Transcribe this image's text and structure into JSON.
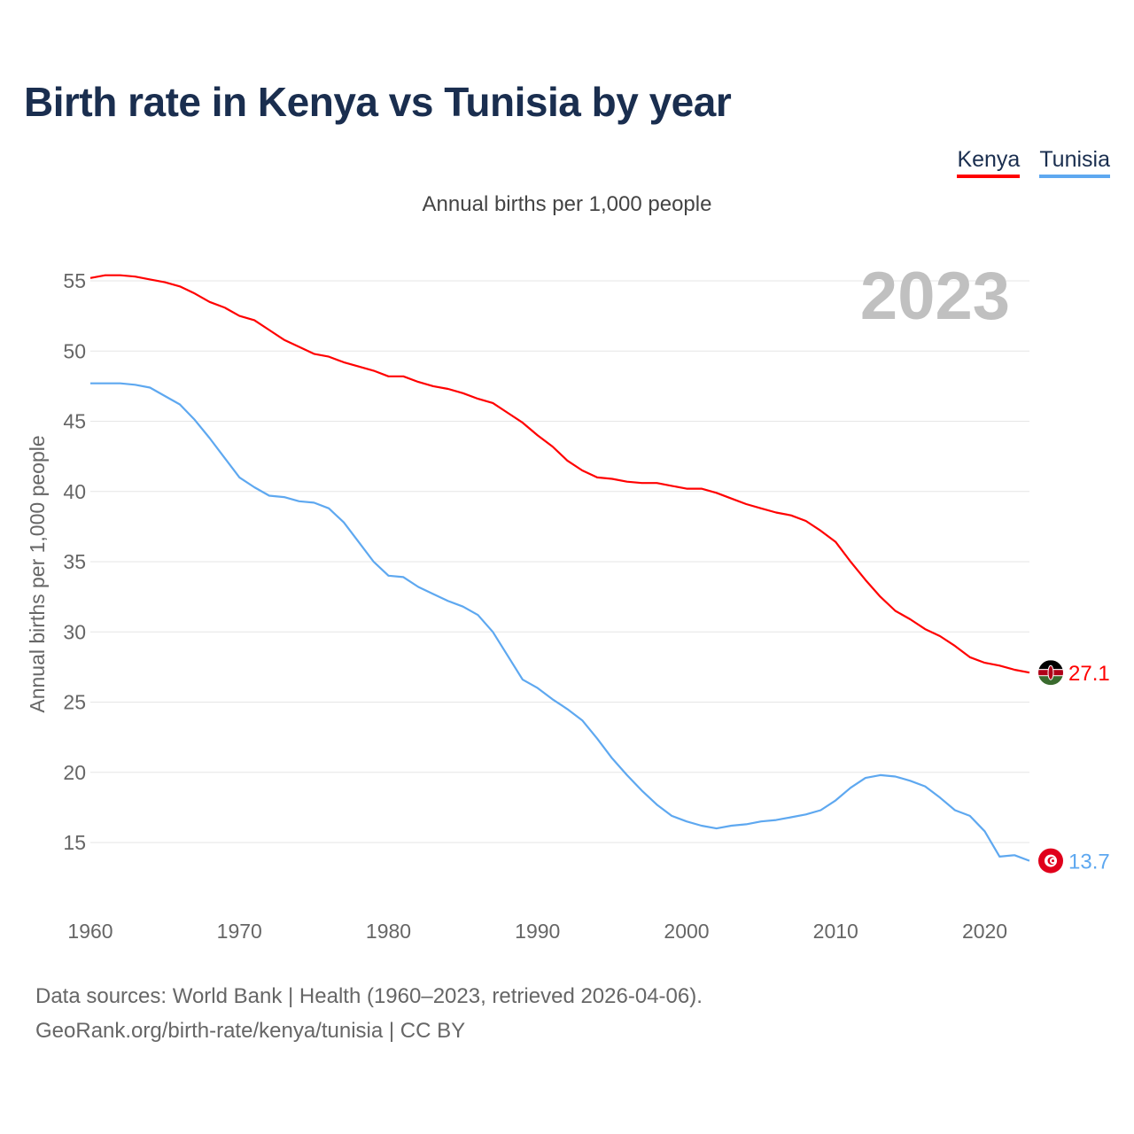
{
  "title": "Birth rate in Kenya vs Tunisia by year",
  "subtitle": "Annual births per 1,000 people",
  "footer": {
    "line1": "Data sources: World Bank | Health (1960–2023, retrieved 2026-04-06).",
    "line2": "GeoRank.org/birth-rate/kenya/tunisia | CC BY"
  },
  "chart_data": {
    "type": "line",
    "title": "Birth rate in Kenya vs Tunisia by year",
    "xlabel": "",
    "ylabel": "Annual births per 1,000 people",
    "year_label": "2023",
    "xlim": [
      1960,
      2023
    ],
    "ylim": [
      10,
      57
    ],
    "xticks": [
      1960,
      1970,
      1980,
      1990,
      2000,
      2010,
      2020
    ],
    "yticks": [
      15,
      20,
      25,
      30,
      35,
      40,
      45,
      50,
      55
    ],
    "grid": true,
    "legend_position": "top-right",
    "x": [
      1960,
      1961,
      1962,
      1963,
      1964,
      1965,
      1966,
      1967,
      1968,
      1969,
      1970,
      1971,
      1972,
      1973,
      1974,
      1975,
      1976,
      1977,
      1978,
      1979,
      1980,
      1981,
      1982,
      1983,
      1984,
      1985,
      1986,
      1987,
      1988,
      1989,
      1990,
      1991,
      1992,
      1993,
      1994,
      1995,
      1996,
      1997,
      1998,
      1999,
      2000,
      2001,
      2002,
      2003,
      2004,
      2005,
      2006,
      2007,
      2008,
      2009,
      2010,
      2011,
      2012,
      2013,
      2014,
      2015,
      2016,
      2017,
      2018,
      2019,
      2020,
      2021,
      2022,
      2023
    ],
    "series": [
      {
        "name": "Kenya",
        "color": "#ff0000",
        "end_label": "27.1",
        "flag": "kenya-flag",
        "values": [
          55.2,
          55.4,
          55.4,
          55.3,
          55.1,
          54.9,
          54.6,
          54.1,
          53.5,
          53.1,
          52.5,
          52.2,
          51.5,
          50.8,
          50.3,
          49.8,
          49.6,
          49.2,
          48.9,
          48.6,
          48.2,
          48.2,
          47.8,
          47.5,
          47.3,
          47.0,
          46.6,
          46.3,
          45.6,
          44.9,
          44.0,
          43.2,
          42.2,
          41.5,
          41.0,
          40.9,
          40.7,
          40.6,
          40.6,
          40.4,
          40.2,
          40.2,
          39.9,
          39.5,
          39.1,
          38.8,
          38.5,
          38.3,
          37.9,
          37.2,
          36.4,
          35.0,
          33.7,
          32.5,
          31.5,
          30.9,
          30.2,
          29.7,
          29.0,
          28.2,
          27.8,
          27.6,
          27.3,
          27.1
        ]
      },
      {
        "name": "Tunisia",
        "color": "#5ea8f0",
        "end_label": "13.7",
        "flag": "tunisia-flag",
        "values": [
          47.7,
          47.7,
          47.7,
          47.6,
          47.4,
          46.8,
          46.2,
          45.1,
          43.8,
          42.4,
          41.0,
          40.3,
          39.7,
          39.6,
          39.3,
          39.2,
          38.8,
          37.8,
          36.4,
          35.0,
          34.0,
          33.9,
          33.2,
          32.7,
          32.2,
          31.8,
          31.2,
          30.0,
          28.3,
          26.6,
          26.0,
          25.2,
          24.5,
          23.7,
          22.4,
          21.0,
          19.8,
          18.7,
          17.7,
          16.9,
          16.5,
          16.2,
          16.0,
          16.2,
          16.3,
          16.5,
          16.6,
          16.8,
          17.0,
          17.3,
          18.0,
          18.9,
          19.6,
          19.8,
          19.7,
          19.4,
          19.0,
          18.2,
          17.3,
          16.9,
          15.8,
          14.0,
          14.1,
          13.7
        ]
      }
    ]
  }
}
